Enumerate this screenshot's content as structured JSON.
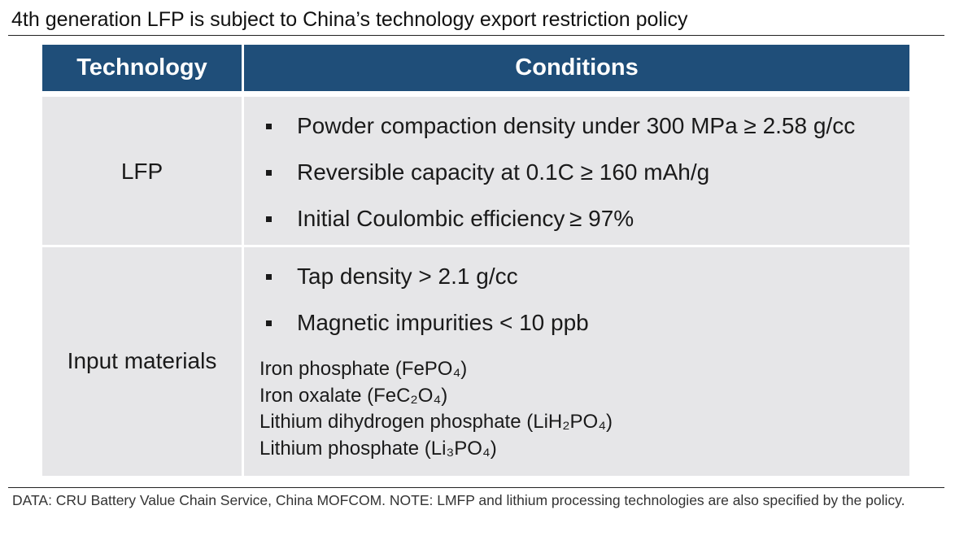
{
  "title": "4th generation LFP is subject to China’s technology export restriction policy",
  "table": {
    "headers": [
      "Technology",
      "Conditions"
    ],
    "rows": [
      {
        "technology": "LFP",
        "bullets": [
          "Powder compaction density under 300 MPa ≥ 2.58 g/cc",
          "Reversible capacity at 0.1C ≥ 160 mAh/g",
          "Initial Coulombic efficiency ≥ 97%"
        ],
        "materials": []
      },
      {
        "technology": "Input materials",
        "bullets": [
          "Tap density > 2.1 g/cc",
          "Magnetic impurities < 10 ppb"
        ],
        "materials": [
          "Iron phosphate (FePO₄)",
          "Iron oxalate (FeC₂O₄)",
          "Lithium dihydrogen phosphate (LiH₂PO₄)",
          "Lithium phosphate (Li₃PO₄)"
        ]
      }
    ]
  },
  "footnote": "DATA: CRU Battery Value Chain Service, China MOFCOM. NOTE: LMFP and lithium processing technologies are also specified by the policy.",
  "colors": {
    "header_bg": "#1f4e79",
    "cell_bg": "#e6e6e8",
    "header_text": "#ffffff"
  }
}
